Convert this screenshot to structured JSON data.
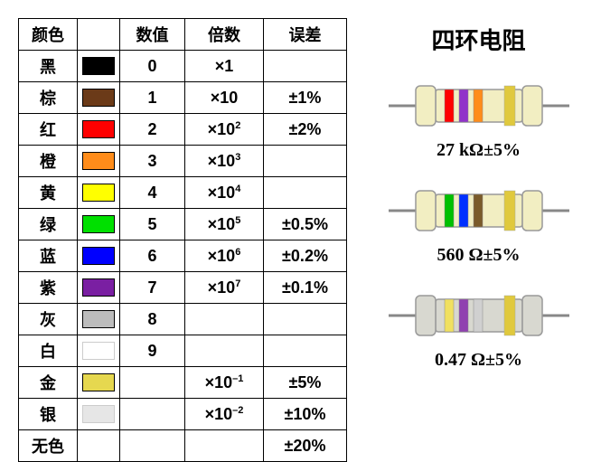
{
  "table": {
    "headers": [
      "颜色",
      "",
      "数值",
      "倍数",
      "误差"
    ],
    "rows": [
      {
        "name": "黑",
        "color": "#000000",
        "value": "0",
        "mult": "×1",
        "tol": ""
      },
      {
        "name": "棕",
        "color": "#6b3a18",
        "value": "1",
        "mult": "×10",
        "tol": "±1%"
      },
      {
        "name": "红",
        "color": "#ff0000",
        "value": "2",
        "mult_html": "×10<sup>2</sup>",
        "tol": "±2%"
      },
      {
        "name": "橙",
        "color": "#ff8c1a",
        "value": "3",
        "mult_html": "×10<sup>3</sup>",
        "tol": ""
      },
      {
        "name": "黄",
        "color": "#ffff00",
        "value": "4",
        "mult_html": "×10<sup>4</sup>",
        "tol": ""
      },
      {
        "name": "绿",
        "color": "#00e000",
        "value": "5",
        "mult_html": "×10<sup>5</sup>",
        "tol": "±0.5%"
      },
      {
        "name": "蓝",
        "color": "#0000ff",
        "value": "6",
        "mult_html": "×10<sup>6</sup>",
        "tol": "±0.2%"
      },
      {
        "name": "紫",
        "color": "#7a1fa2",
        "value": "7",
        "mult_html": "×10<sup>7</sup>",
        "tol": "±0.1%"
      },
      {
        "name": "灰",
        "color": "#bcbcbc",
        "value": "8",
        "mult": "",
        "tol": ""
      },
      {
        "name": "白",
        "color": "#ffffff",
        "value": "9",
        "mult": "",
        "tol": ""
      },
      {
        "name": "金",
        "color": "#e6d84f",
        "value": "",
        "mult_html": "×10<sup>–1</sup>",
        "tol": "±5%"
      },
      {
        "name": "银",
        "color": "#e6e6e6",
        "value": "",
        "mult_html": "×10<sup>–2</sup>",
        "tol": "±10%"
      },
      {
        "name": "无色",
        "color": null,
        "value": "",
        "mult": "",
        "tol": "±20%"
      }
    ]
  },
  "right": {
    "title": "四环电阻",
    "resistors": [
      {
        "label": "27 kΩ±5%",
        "body_color": "#f2eec2",
        "bands": [
          "#ff0000",
          "#9133c9",
          "#ff8c1a"
        ],
        "tol_band": "#e0c93d"
      },
      {
        "label": "560 Ω±5%",
        "body_color": "#f2eec2",
        "bands": [
          "#00c000",
          "#0030ff",
          "#7a5a2a"
        ],
        "tol_band": "#e0c93d"
      },
      {
        "label": "0.47 Ω±5%",
        "body_color": "#d8d8d0",
        "bands": [
          "#f0e060",
          "#9040b0",
          "#d0d0d0"
        ],
        "tol_band": "#e0c93d"
      }
    ]
  }
}
